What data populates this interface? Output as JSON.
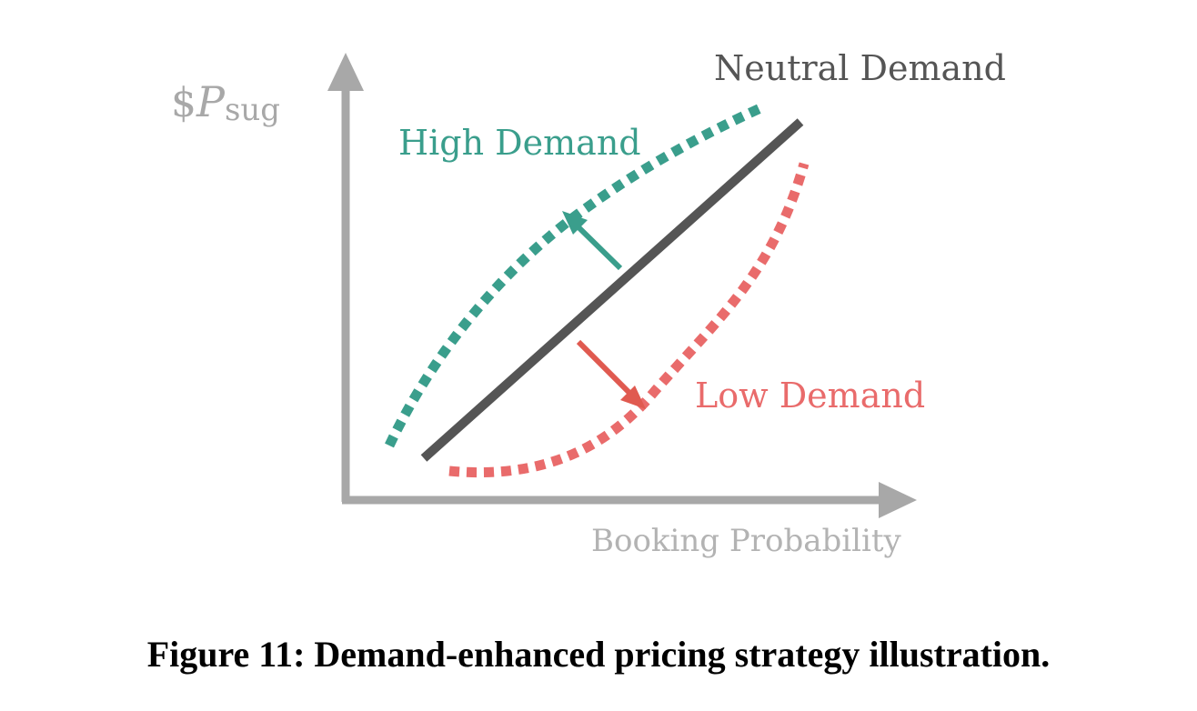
{
  "diagram": {
    "y_axis": {
      "symbol": "$",
      "variable": "P",
      "subscript": "sug"
    },
    "x_axis_label": "Booking Probability",
    "curves": {
      "neutral": {
        "label": "Neutral Demand",
        "color": "#555555"
      },
      "high": {
        "label": "High Demand",
        "color": "#3a9e8c"
      },
      "low": {
        "label": "Low Demand",
        "color": "#e96b6b"
      }
    },
    "axis_color": "#a8a8a8"
  },
  "caption": "Figure 11: Demand-enhanced pricing strategy illustration."
}
